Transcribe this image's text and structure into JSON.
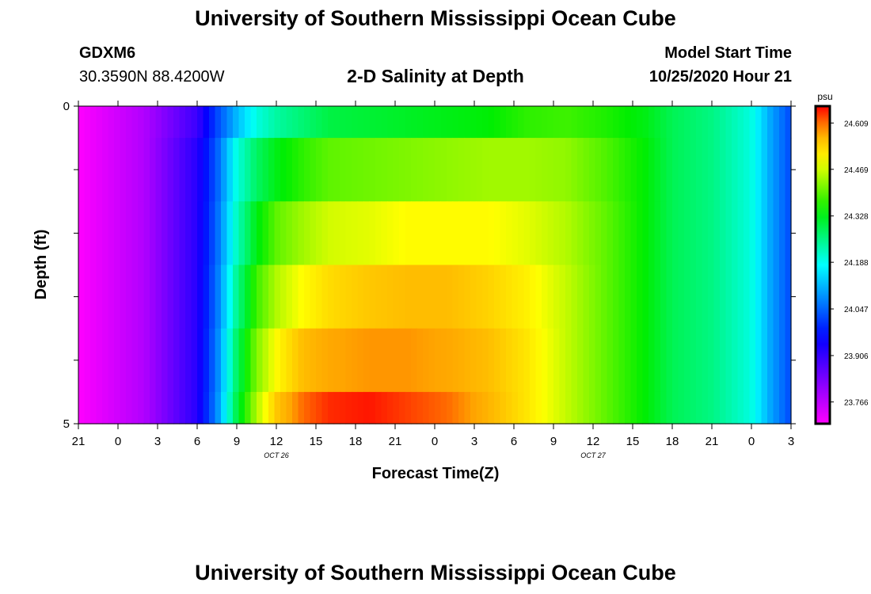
{
  "header": {
    "title": "University of Southern Mississippi Ocean Cube",
    "station_id": "GDXM6",
    "station_coords": "30.3590N 88.4200W",
    "plot_title": "2-D Salinity at Depth",
    "model_start_label": "Model Start Time",
    "model_start_value": "10/25/2020 Hour 21"
  },
  "footer": {
    "title": "University of Southern Mississippi Ocean Cube"
  },
  "chart_data": {
    "type": "heatmap",
    "xlabel": "Forecast Time(Z)",
    "ylabel": "Depth (ft)",
    "x_tick_labels": [
      "21",
      "0",
      "3",
      "6",
      "9",
      "12",
      "15",
      "18",
      "21",
      "0",
      "3",
      "6",
      "9",
      "12",
      "15",
      "18",
      "21",
      "0",
      "3"
    ],
    "date_labels": [
      {
        "text": "OCT 26",
        "at_tick": 5
      },
      {
        "text": "OCT 27",
        "at_tick": 13
      }
    ],
    "y_tick_labels": [
      {
        "label": "0",
        "depth": 0
      },
      {
        "label": "",
        "depth": 1
      },
      {
        "label": "",
        "depth": 2
      },
      {
        "label": "",
        "depth": 3
      },
      {
        "label": "",
        "depth": 4
      },
      {
        "label": "5",
        "depth": 5
      }
    ],
    "ylim": [
      0,
      5
    ],
    "depth_rows": [
      0.5,
      1.5,
      2.5,
      3.5,
      4.5
    ],
    "hours_range": [
      0,
      54
    ],
    "colorbar": {
      "unit": "psu",
      "min": 23.7,
      "max": 24.66,
      "tick_values": [
        23.766,
        23.906,
        24.047,
        24.188,
        24.328,
        24.469,
        24.609
      ],
      "tick_labels": [
        "23.766",
        "23.906",
        "24.047",
        "24.188",
        "24.328",
        "24.469",
        "24.609"
      ]
    },
    "salinity_keyframes": {
      "hours": [
        0,
        5,
        9,
        10.5,
        12,
        13.5,
        15,
        17,
        19,
        22,
        25,
        28,
        31,
        34,
        37,
        40,
        43,
        45,
        48,
        51,
        52.5,
        54
      ],
      "rows": [
        [
          23.7,
          23.78,
          23.9,
          24.02,
          24.12,
          24.2,
          24.24,
          24.27,
          24.3,
          24.31,
          24.32,
          24.33,
          24.34,
          24.37,
          24.38,
          24.36,
          24.33,
          24.29,
          24.26,
          24.2,
          24.1,
          24.02
        ],
        [
          23.7,
          23.78,
          23.92,
          24.04,
          24.2,
          24.28,
          24.33,
          24.37,
          24.4,
          24.41,
          24.42,
          24.43,
          24.44,
          24.44,
          24.43,
          24.39,
          24.34,
          24.29,
          24.26,
          24.2,
          24.1,
          24.02
        ],
        [
          23.7,
          23.78,
          23.92,
          24.05,
          24.22,
          24.33,
          24.4,
          24.44,
          24.47,
          24.48,
          24.5,
          24.5,
          24.5,
          24.48,
          24.45,
          24.4,
          24.34,
          24.29,
          24.26,
          24.2,
          24.1,
          24.02
        ],
        [
          23.7,
          23.78,
          23.92,
          24.06,
          24.25,
          24.38,
          24.45,
          24.5,
          24.53,
          24.55,
          24.56,
          24.56,
          24.54,
          24.51,
          24.46,
          24.4,
          24.34,
          24.29,
          24.26,
          24.2,
          24.1,
          24.02
        ],
        [
          23.7,
          23.78,
          23.92,
          24.07,
          24.28,
          24.42,
          24.5,
          24.56,
          24.58,
          24.59,
          24.59,
          24.58,
          24.56,
          24.52,
          24.46,
          24.4,
          24.34,
          24.29,
          24.26,
          24.2,
          24.1,
          24.02
        ],
        [
          23.7,
          23.78,
          23.92,
          24.08,
          24.3,
          24.45,
          24.55,
          24.61,
          24.64,
          24.65,
          24.63,
          24.61,
          24.57,
          24.52,
          24.46,
          24.4,
          24.34,
          24.29,
          24.26,
          24.2,
          24.1,
          24.02
        ]
      ]
    }
  }
}
